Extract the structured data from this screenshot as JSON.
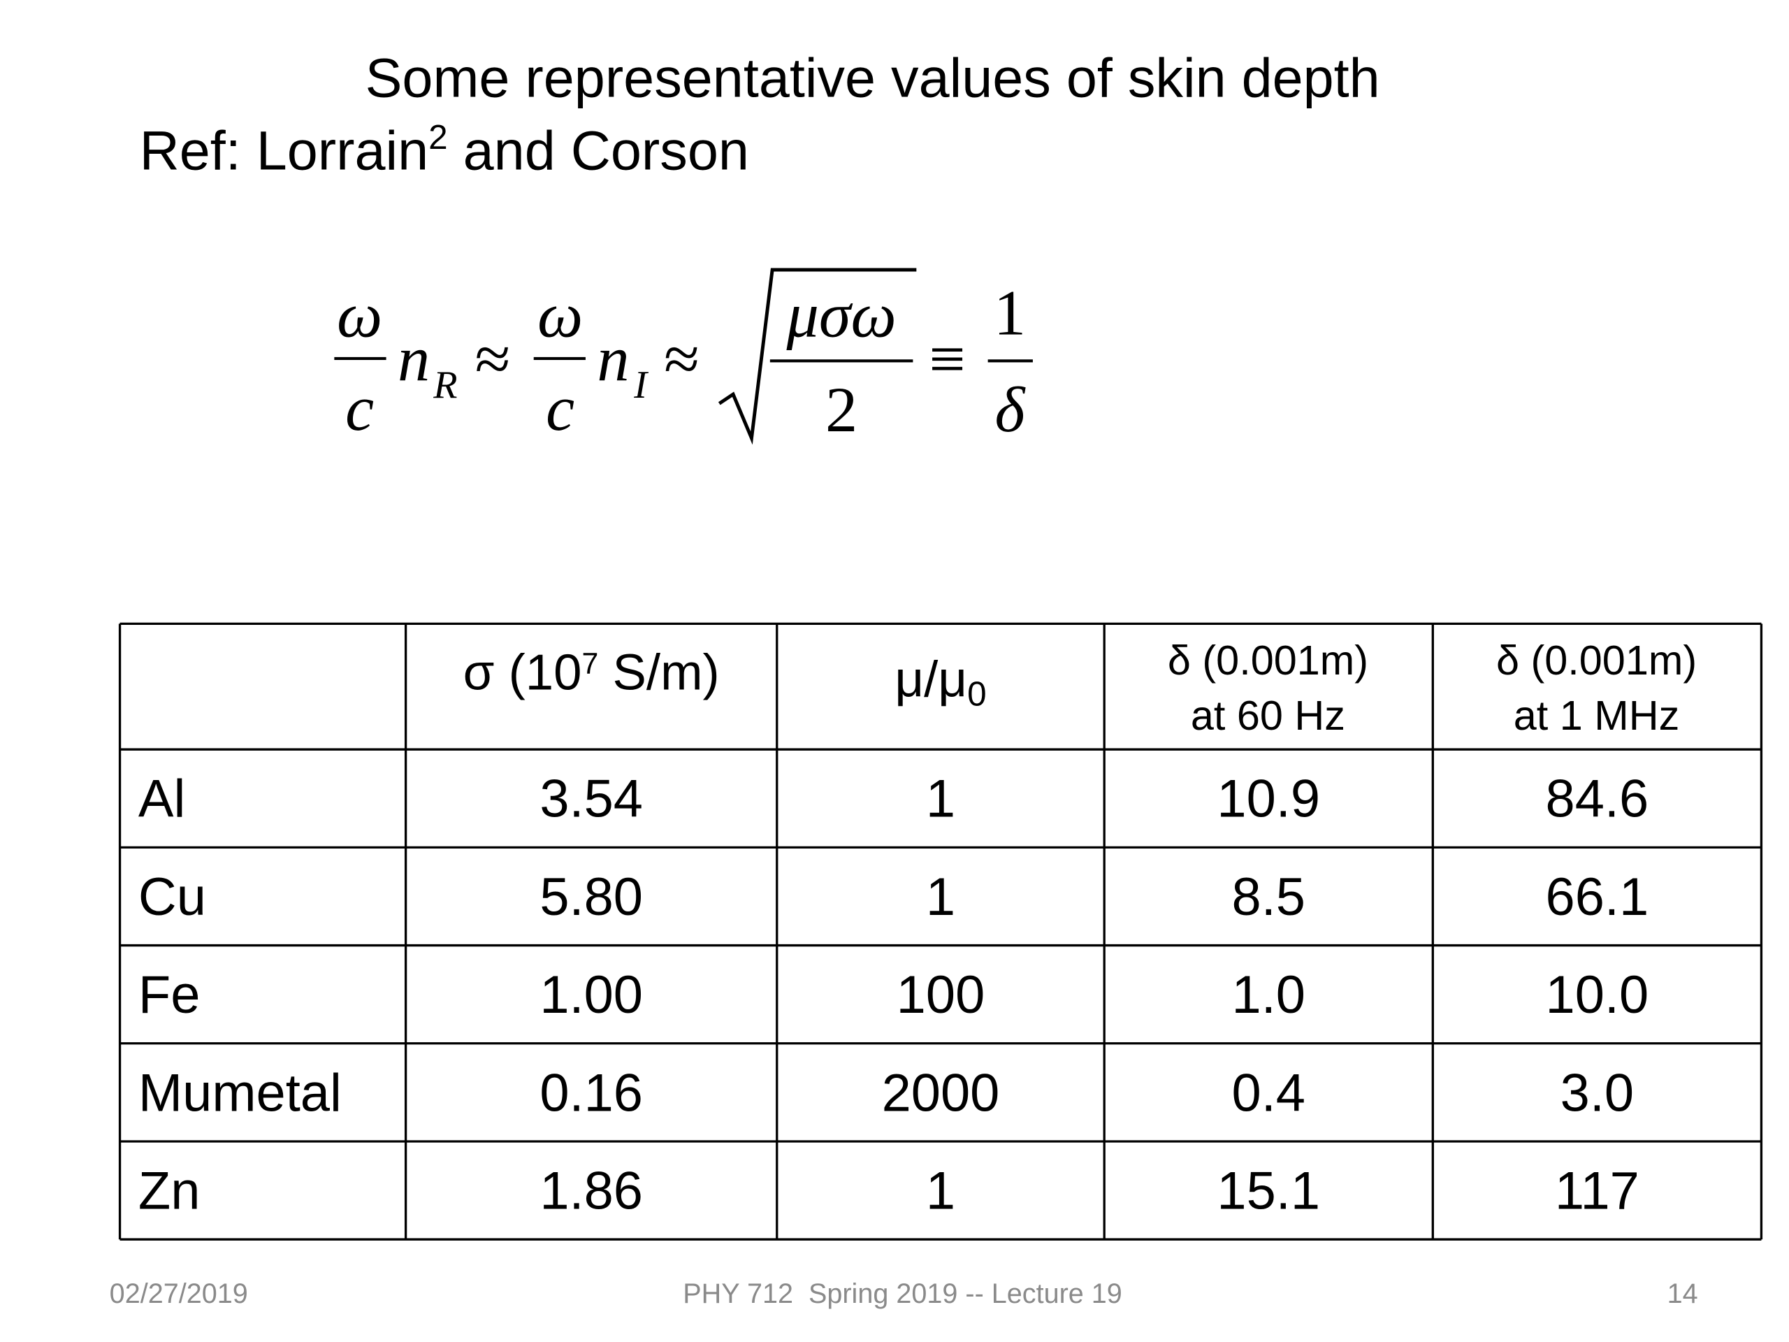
{
  "title": {
    "line1": "Some representative values of skin depth",
    "ref": "Ref: Lorrain",
    "ref_sup": "2",
    "ref_tail": " and Corson"
  },
  "formula": {
    "omega1": "ω",
    "c1": "c",
    "n1": "n",
    "sub1": "R",
    "approx1": "≈",
    "omega2": "ω",
    "c2": "c",
    "n2": "n",
    "sub2": "I",
    "approx2": "≈",
    "numerator": "μσω",
    "denominator": "2",
    "equiv": "≡",
    "one": "1",
    "delta": "δ"
  },
  "table": {
    "header": {
      "sigma": "σ (10",
      "sigma_sup": "7",
      "sigma_tail": " S/m)",
      "mu": "μ/μ",
      "mu_sub": "0",
      "d60": [
        "δ (0.001m)",
        "at 60 Hz"
      ],
      "d1m": [
        "δ (0.001m)",
        "at 1 MHz"
      ]
    },
    "rows": [
      [
        "Al",
        "3.54",
        "1",
        "10.9",
        "84.6"
      ],
      [
        "Cu",
        "5.80",
        "1",
        "8.5",
        "66.1"
      ],
      [
        "Fe",
        "1.00",
        "100",
        "1.0",
        "10.0"
      ],
      [
        "Mumetal",
        "0.16",
        "2000",
        "0.4",
        "3.0"
      ],
      [
        "Zn",
        "1.86",
        "1",
        "15.1",
        "117"
      ]
    ]
  },
  "footer": {
    "date": "02/27/2019",
    "course": "PHY 712  Spring 2019 -- Lecture 19",
    "page": "14"
  }
}
